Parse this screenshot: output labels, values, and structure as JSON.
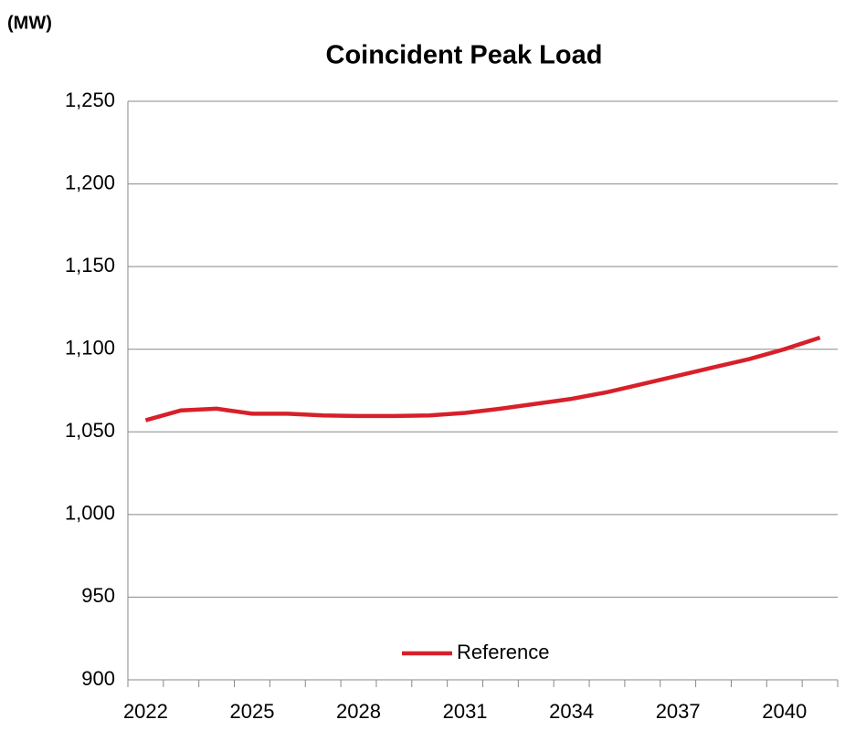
{
  "chart_data": {
    "type": "line",
    "title": "Coincident Peak Load",
    "y_label": "(MW)",
    "categories": [
      "2022",
      null,
      null,
      "2025",
      null,
      null,
      "2028",
      null,
      null,
      "2031",
      null,
      null,
      "2034",
      null,
      null,
      "2037",
      null,
      null,
      "2040",
      null
    ],
    "series": [
      {
        "name": "Reference",
        "color": "#d7202a",
        "values": [
          1057,
          1063,
          1064,
          1061,
          1061,
          1060,
          1059.6,
          1059.6,
          1060,
          1061.5,
          1064,
          1067,
          1070,
          1074,
          1079,
          1084,
          1089,
          1094,
          1100,
          1107
        ]
      }
    ],
    "ylim": [
      900,
      1250
    ],
    "yticks": [
      900,
      950,
      {
        "value": 1000,
        "label": "1,000"
      },
      {
        "value": 1050,
        "label": "1,050"
      },
      {
        "value": 1100,
        "label": "1,100"
      },
      {
        "value": 1150,
        "label": "1,150"
      },
      {
        "value": 1200,
        "label": "1,200"
      },
      {
        "value": 1250,
        "label": "1,250"
      }
    ],
    "grid": true,
    "legend": "bottom"
  }
}
